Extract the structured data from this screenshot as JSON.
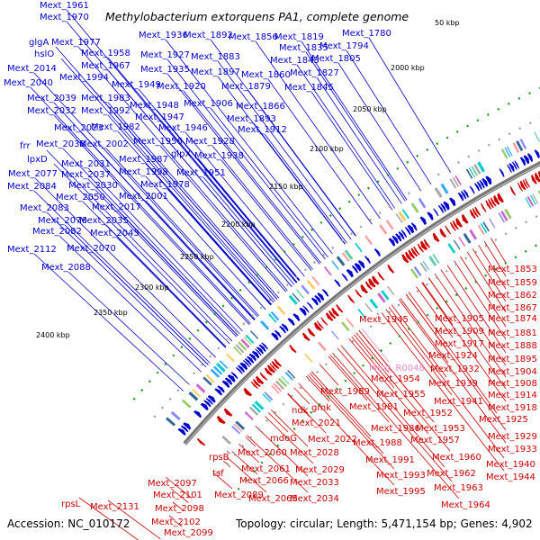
{
  "title": "Methylobacterium extorquens PA1, complete genome",
  "footer": {
    "accession": "Accession: NC_010172",
    "summary": "Topology: circular; Length: 5,471,154 bp; Genes: 4,902"
  },
  "colors": {
    "forward": "#0000cc",
    "reverse": "#cc0000",
    "highlight": "#ee88cc",
    "backbone": "#777777"
  },
  "ticks": [
    "50 kbp",
    "2000 kbp",
    "2050 kbp",
    "2100 kbp",
    "2150 kbp",
    "2200 kbp",
    "2250 kbp",
    "2300 kbp",
    "2350 kbp",
    "2400 kbp"
  ],
  "forward_labels": [
    "Mext_1961",
    "Mext_1970",
    "glgA",
    "hslO",
    "Mext_2014",
    "Mext_2040",
    "Mext_2039",
    "Mext_2032",
    "Mext_2023",
    "frr",
    "lpxD",
    "Mext_2077",
    "Mext_2084",
    "Mext_2083",
    "Mext_2082",
    "Mext_2112",
    "Mext_2088",
    "Mext_1936",
    "Mext_1892",
    "Mext_1856",
    "Mext_1819",
    "Mext_1835",
    "Mext_1780",
    "Mext_1794",
    "Mext_1977",
    "Mext_1958",
    "Mext_1927",
    "Mext_1883",
    "Mext_1843",
    "Mext_1805",
    "Mext_1967",
    "Mext_1935",
    "Mext_1897",
    "Mext_1860",
    "Mext_1827",
    "Mext_1994",
    "Mext_1949",
    "Mext_1920",
    "Mext_1879",
    "Mext_1845",
    "Mext_1983",
    "Mext_1948",
    "Mext_1906",
    "Mext_1866",
    "Mext_1992",
    "Mext_1947",
    "Mext_1893",
    "Mext_1982",
    "Mext_1946",
    "Mext_1912",
    "Mext_2002",
    "Mext_1956",
    "Mext_1928",
    "Mext_2038",
    "Mext_1987",
    "glpX",
    "Mext_1938",
    "Mext_2031",
    "Mext_2037",
    "Mext_1998",
    "Mext_1951",
    "Mext_2030",
    "Mext_1978",
    "Mext_2050",
    "Mext_2001",
    "Mext_2017",
    "Mext_2076",
    "Mext_2035",
    "Mext_2045",
    "Mext_2070"
  ],
  "reverse_labels": [
    "Mext_1853",
    "Mext_1859",
    "Mext_1862",
    "Mext_1867",
    "Mext_1905",
    "Mext_1874",
    "Mext_1945",
    "Mext_1909",
    "Mext_1881",
    "Mext_1917",
    "Mext_1888",
    "Mext_1924",
    "Mext_1895",
    "Mext_1932",
    "Mext_1904",
    "Mext_1954",
    "Mext_1939",
    "Mext_1908",
    "Mext_1955",
    "Mext_1941",
    "Mext_1914",
    "Mext_1918",
    "Mext_1925",
    "Mext_1952",
    "Mext_1989",
    "ndk",
    "gmk",
    "Mext_1981",
    "Mext_1953",
    "Mext_1929",
    "Mext_1986",
    "Mext_1957",
    "Mext_1933",
    "Mext_2021",
    "Mext_2022",
    "Mext_1988",
    "Mext_1960",
    "Mext_1940",
    "mdoG",
    "Mext_2028",
    "Mext_1991",
    "Mext_1962",
    "Mext_1944",
    "Mext_2060",
    "Mext_2029",
    "Mext_1993",
    "Mext_1963",
    "rpsB",
    "Mext_2061",
    "Mext_2033",
    "Mext_1995",
    "tsf",
    "Mext_2066",
    "Mext_1964",
    "Mext_2097",
    "Mext_2089",
    "Mext_2065",
    "Mext_2034",
    "Mext_2101",
    "rpsL",
    "Mext_2131",
    "Mext_2098",
    "Mext_2102",
    "Mext_2099"
  ],
  "highlight_label": "Mext_R0048"
}
